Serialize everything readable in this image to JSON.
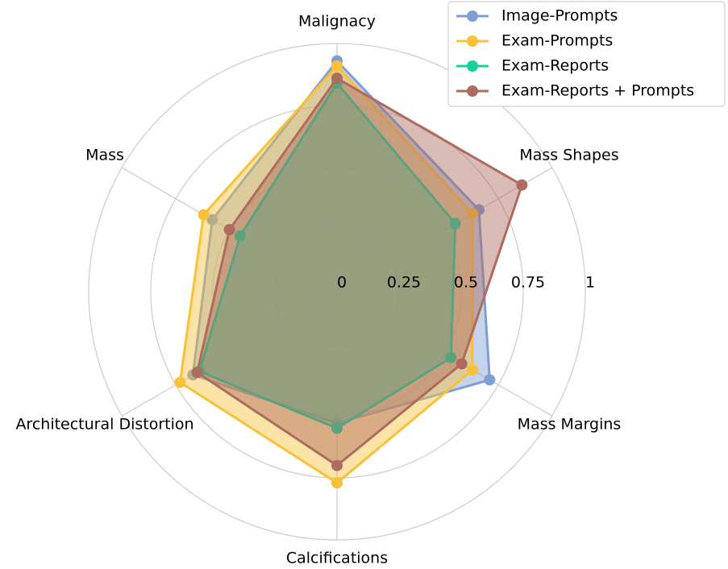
{
  "chart_data": {
    "type": "radar",
    "axes": [
      "Malignacy",
      "Mass Shapes",
      "Mass Margins",
      "Calcifications",
      "Architectural Distortion",
      "Mass"
    ],
    "rlim": [
      0,
      1
    ],
    "rticks": [
      0,
      0.25,
      0.5,
      0.75,
      1
    ],
    "rtick_labels": [
      "0",
      "0.25",
      "0.5",
      "0.75",
      "1"
    ],
    "grid": true,
    "legend_position": "top-right",
    "series": [
      {
        "name": "Image-Prompts",
        "color": "#7f9fd4",
        "values": [
          0.93,
          0.66,
          0.71,
          0.53,
          0.67,
          0.58
        ]
      },
      {
        "name": "Exam-Prompts",
        "color": "#f9c03a",
        "values": [
          0.91,
          0.63,
          0.63,
          0.77,
          0.73,
          0.62
        ]
      },
      {
        "name": "Exam-Reports",
        "color": "#19cf9b",
        "values": [
          0.84,
          0.55,
          0.53,
          0.55,
          0.64,
          0.45
        ]
      },
      {
        "name": "Exam-Reports + Prompts",
        "color": "#ae6b5e",
        "values": [
          0.86,
          0.86,
          0.58,
          0.7,
          0.65,
          0.5
        ]
      }
    ]
  }
}
